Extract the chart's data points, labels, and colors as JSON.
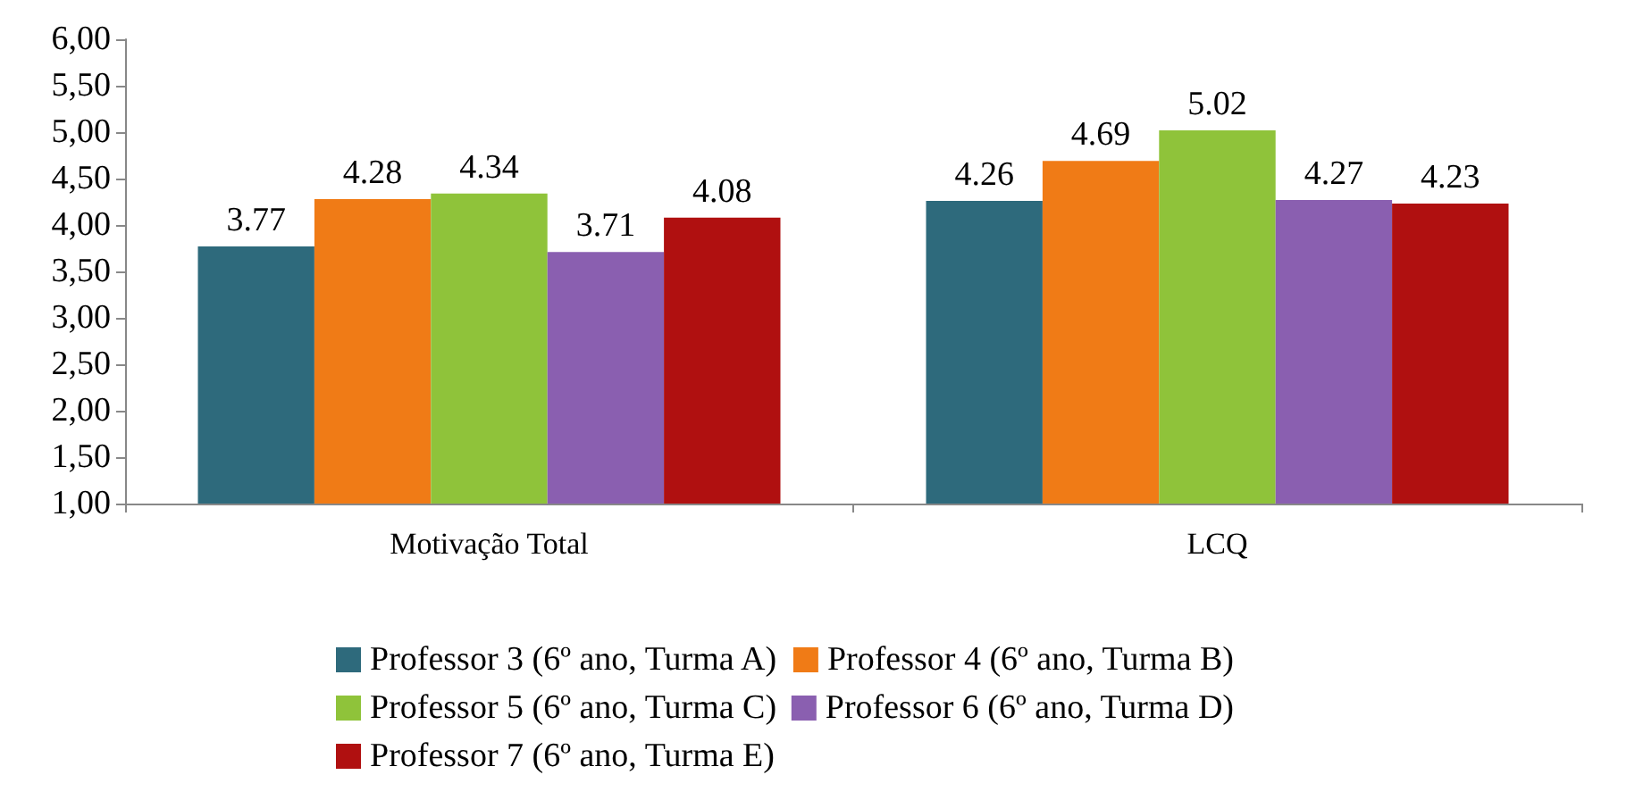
{
  "chart_data": {
    "type": "bar",
    "categories": [
      "Motivação Total",
      "LCQ"
    ],
    "series": [
      {
        "name": "Professor 3 (6º ano, Turma A)",
        "color": "#2e6a7c",
        "values": [
          3.77,
          4.26
        ]
      },
      {
        "name": "Professor 4 (6º ano, Turma B)",
        "color": "#f07b16",
        "values": [
          4.28,
          4.69
        ]
      },
      {
        "name": "Professor 5 (6º ano, Turma C)",
        "color": "#8fc33a",
        "values": [
          4.34,
          5.02
        ]
      },
      {
        "name": "Professor 6 (6º ano, Turma D)",
        "color": "#8a5fb0",
        "values": [
          3.71,
          4.27
        ]
      },
      {
        "name": "Professor 7 (6º ano, Turma E)",
        "color": "#b01010",
        "values": [
          4.08,
          4.23
        ]
      }
    ],
    "ylim": [
      1,
      6
    ],
    "yticks": [
      {
        "value": 1,
        "label": "1,00"
      },
      {
        "value": 1.5,
        "label": "1,50"
      },
      {
        "value": 2,
        "label": "2,00"
      },
      {
        "value": 2.5,
        "label": "2,50"
      },
      {
        "value": 3,
        "label": "3,00"
      },
      {
        "value": 3.5,
        "label": "3,50"
      },
      {
        "value": 4,
        "label": "4,00"
      },
      {
        "value": 4.5,
        "label": "4,50"
      },
      {
        "value": 5,
        "label": "5,00"
      },
      {
        "value": 5.5,
        "label": "5,50"
      },
      {
        "value": 6,
        "label": "6,00"
      }
    ],
    "data_labels": true,
    "grid": false,
    "legend": "bottom"
  }
}
